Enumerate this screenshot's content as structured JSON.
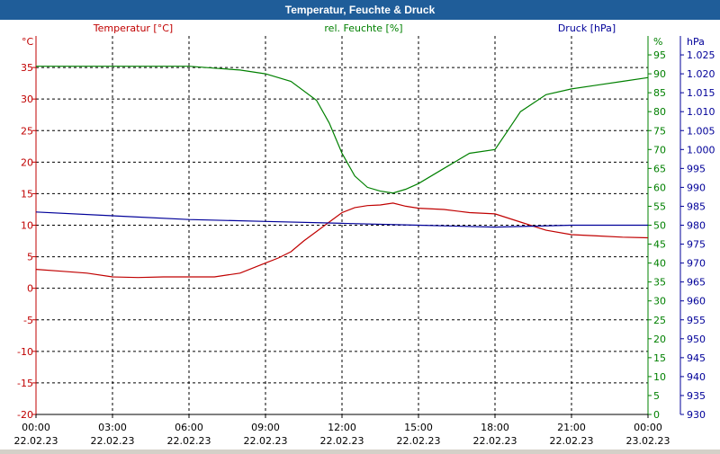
{
  "window": {
    "title": "Temperatur, Feuchte & Druck"
  },
  "colors": {
    "temperature": "#c00000",
    "humidity": "#008000",
    "pressure": "#000099",
    "grid": "#000000",
    "title_bar": "#1f5d99"
  },
  "chart_data": {
    "type": "line",
    "title": "Temperatur, Feuchte & Druck",
    "grid": true,
    "legend": "top",
    "x_ticks": [
      {
        "time": "00:00",
        "date": "22.02.23"
      },
      {
        "time": "03:00",
        "date": "22.02.23"
      },
      {
        "time": "06:00",
        "date": "22.02.23"
      },
      {
        "time": "09:00",
        "date": "22.02.23"
      },
      {
        "time": "12:00",
        "date": "22.02.23"
      },
      {
        "time": "15:00",
        "date": "22.02.23"
      },
      {
        "time": "18:00",
        "date": "22.02.23"
      },
      {
        "time": "21:00",
        "date": "22.02.23"
      },
      {
        "time": "00:00",
        "date": "23.02.23"
      }
    ],
    "axes": {
      "left": {
        "unit": "°C",
        "range": [
          -20,
          40
        ],
        "ticks": [
          "35",
          "30",
          "25",
          "20",
          "15",
          "10",
          "5",
          "0",
          "-5",
          "-10",
          "-15",
          "-20"
        ],
        "tick_values": [
          35,
          30,
          25,
          20,
          15,
          10,
          5,
          0,
          -5,
          -10,
          -15,
          -20
        ]
      },
      "right1": {
        "unit": "%",
        "range": [
          0,
          100
        ],
        "ticks": [
          "95",
          "90",
          "85",
          "80",
          "75",
          "70",
          "65",
          "60",
          "55",
          "50",
          "45",
          "40",
          "35",
          "30",
          "25",
          "20",
          "15",
          "10",
          "5",
          "0"
        ],
        "tick_values": [
          95,
          90,
          85,
          80,
          75,
          70,
          65,
          60,
          55,
          50,
          45,
          40,
          35,
          30,
          25,
          20,
          15,
          10,
          5,
          0
        ]
      },
      "right2": {
        "unit": "hPa",
        "range": [
          930,
          1030
        ],
        "ticks": [
          "1.025",
          "1.020",
          "1.015",
          "1.010",
          "1.005",
          "1.000",
          "995",
          "990",
          "985",
          "980",
          "975",
          "970",
          "965",
          "960",
          "955",
          "950",
          "945",
          "940",
          "935",
          "930"
        ],
        "tick_values": [
          1025,
          1020,
          1015,
          1010,
          1005,
          1000,
          995,
          990,
          985,
          980,
          975,
          970,
          965,
          960,
          955,
          950,
          945,
          940,
          935,
          930
        ]
      }
    },
    "series": [
      {
        "name": "Temperatur [°C]",
        "axis": "left",
        "color": "#c00000",
        "x_hours": [
          0,
          1,
          2,
          3,
          4,
          5,
          6,
          7,
          8,
          9,
          9.5,
          10,
          10.5,
          11,
          11.5,
          12,
          12.5,
          13,
          13.5,
          14,
          14.5,
          15,
          16,
          17,
          18,
          19,
          20,
          21,
          22,
          23,
          24
        ],
        "values": [
          3,
          2.7,
          2.4,
          1.8,
          1.7,
          1.8,
          1.8,
          1.8,
          2.4,
          4,
          4.8,
          5.8,
          7.5,
          9,
          10.5,
          12,
          12.8,
          13.1,
          13.2,
          13.5,
          13,
          12.7,
          12.5,
          12,
          11.8,
          10.5,
          9.2,
          8.5,
          8.3,
          8.1,
          8.0
        ]
      },
      {
        "name": "rel. Feuchte [%]",
        "axis": "right1",
        "color": "#008000",
        "x_hours": [
          0,
          1,
          2,
          3,
          4,
          5,
          6,
          7,
          8,
          9,
          10,
          11,
          11.5,
          12,
          12.5,
          13,
          13.5,
          14,
          14.5,
          15,
          16,
          17,
          18,
          18.5,
          19,
          20,
          21,
          22,
          23,
          24
        ],
        "values": [
          92,
          92,
          92,
          92,
          92,
          92,
          92,
          91.5,
          91,
          90,
          88,
          83,
          77,
          69,
          63,
          60,
          59,
          58.5,
          59.5,
          61,
          65,
          69,
          70,
          75,
          80,
          84.5,
          86,
          87,
          88,
          89
        ]
      },
      {
        "name": "Druck [hPa]",
        "axis": "right2",
        "color": "#000099",
        "x_hours": [
          0,
          3,
          6,
          9,
          12,
          15,
          18,
          21,
          24
        ],
        "values": [
          983.5,
          982.5,
          981.5,
          981,
          980.5,
          980,
          979.5,
          980,
          980
        ]
      }
    ]
  }
}
